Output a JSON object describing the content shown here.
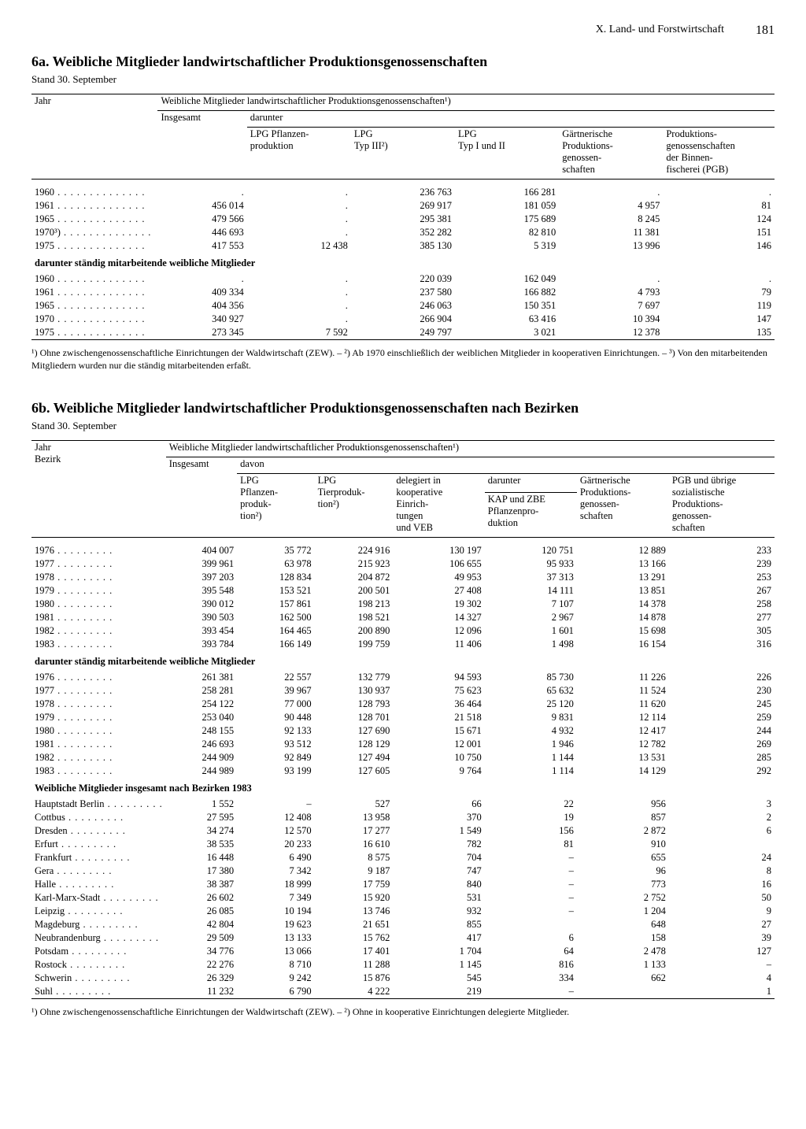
{
  "page": {
    "section": "X. Land- und Forstwirtschaft",
    "number": "181"
  },
  "table6a": {
    "title": "6a. Weibliche Mitglieder landwirtschaftlicher Produktionsgenossenschaften",
    "stand": "Stand 30. September",
    "h_jahr": "Jahr",
    "h_main": "Weibliche Mitglieder landwirtschaftlicher Produktionsgenossenschaften¹)",
    "h_insgesamt": "Insgesamt",
    "h_darunter": "darunter",
    "cols": {
      "c1": "LPG Pflanzen-\nproduktion",
      "c2": "LPG\nTyp III²)",
      "c3": "LPG\nTyp I und II",
      "c4": "Gärtnerische\nProduktions-\ngenossen-\nschaften",
      "c5": "Produktions-\ngenossenschaften\nder Binnen-\nfischerei (PGB)"
    },
    "rows1": [
      {
        "y": "1960",
        "ins": ".",
        "c1": ".",
        "c2": "236 763",
        "c3": "166 281",
        "c4": ".",
        "c5": "."
      },
      {
        "y": "1961",
        "ins": "456 014",
        "c1": ".",
        "c2": "269 917",
        "c3": "181 059",
        "c4": "4 957",
        "c5": "81"
      },
      {
        "y": "1965",
        "ins": "479 566",
        "c1": ".",
        "c2": "295 381",
        "c3": "175 689",
        "c4": "8 245",
        "c5": "124"
      },
      {
        "y": "1970³)",
        "ins": "446 693",
        "c1": ".",
        "c2": "352 282",
        "c3": "82 810",
        "c4": "11 381",
        "c5": "151"
      },
      {
        "y": "1975",
        "ins": "417 553",
        "c1": "12 438",
        "c2": "385 130",
        "c3": "5 319",
        "c4": "13 996",
        "c5": "146"
      }
    ],
    "sub1": "darunter ständig mitarbeitende weibliche Mitglieder",
    "rows2": [
      {
        "y": "1960",
        "ins": ".",
        "c1": ".",
        "c2": "220 039",
        "c3": "162 049",
        "c4": ".",
        "c5": "."
      },
      {
        "y": "1961",
        "ins": "409 334",
        "c1": ".",
        "c2": "237 580",
        "c3": "166 882",
        "c4": "4 793",
        "c5": "79"
      },
      {
        "y": "1965",
        "ins": "404 356",
        "c1": ".",
        "c2": "246 063",
        "c3": "150 351",
        "c4": "7 697",
        "c5": "119"
      },
      {
        "y": "1970",
        "ins": "340 927",
        "c1": ".",
        "c2": "266 904",
        "c3": "63 416",
        "c4": "10 394",
        "c5": "147"
      },
      {
        "y": "1975",
        "ins": "273 345",
        "c1": "7 592",
        "c2": "249 797",
        "c3": "3 021",
        "c4": "12 378",
        "c5": "135"
      }
    ],
    "footnote": "¹) Ohne zwischengenossenschaftliche Einrichtungen der Waldwirtschaft (ZEW). – ²) Ab 1970 einschließlich der weiblichen Mitglieder in kooperativen Einrichtungen. – ³) Von den mitarbeitenden Mitgliedern wurden nur die ständig mitarbeitenden erfaßt."
  },
  "table6b": {
    "title": "6b. Weibliche Mitglieder landwirtschaftlicher Produktionsgenossenschaften nach Bezirken",
    "stand": "Stand 30. September",
    "h_jahr": "Jahr\nBezirk",
    "h_main": "Weibliche Mitglieder landwirtschaftlicher Produktionsgenossenschaften¹)",
    "h_insgesamt": "Insgesamt",
    "h_davon": "davon",
    "h_darunter": "darunter",
    "cols": {
      "c1": "LPG\nPflanzen-\nproduk-\ntion²)",
      "c2": "LPG\nTierproduk-\ntion²)",
      "c3": "delegiert in\nkooperative\nEinrich-\ntungen\nund VEB",
      "c4": "KAP und ZBE\nPflanzenpro-\nduktion",
      "c5": "Gärtnerische\nProduktions-\ngenossen-\nschaften",
      "c6": "PGB und übrige\nsozialistische\nProduktions-\ngenossen-\nschaften"
    },
    "rows1": [
      {
        "y": "1976",
        "ins": "404 007",
        "c1": "35 772",
        "c2": "224 916",
        "c3": "130 197",
        "c4": "120 751",
        "c5": "12 889",
        "c6": "233"
      },
      {
        "y": "1977",
        "ins": "399 961",
        "c1": "63 978",
        "c2": "215 923",
        "c3": "106 655",
        "c4": "95 933",
        "c5": "13 166",
        "c6": "239"
      },
      {
        "y": "1978",
        "ins": "397 203",
        "c1": "128 834",
        "c2": "204 872",
        "c3": "49 953",
        "c4": "37 313",
        "c5": "13 291",
        "c6": "253"
      },
      {
        "y": "1979",
        "ins": "395 548",
        "c1": "153 521",
        "c2": "200 501",
        "c3": "27 408",
        "c4": "14 111",
        "c5": "13 851",
        "c6": "267"
      },
      {
        "y": "1980",
        "ins": "390 012",
        "c1": "157 861",
        "c2": "198 213",
        "c3": "19 302",
        "c4": "7 107",
        "c5": "14 378",
        "c6": "258"
      },
      {
        "y": "1981",
        "ins": "390 503",
        "c1": "162 500",
        "c2": "198 521",
        "c3": "14 327",
        "c4": "2 967",
        "c5": "14 878",
        "c6": "277"
      },
      {
        "y": "1982",
        "ins": "393 454",
        "c1": "164 465",
        "c2": "200 890",
        "c3": "12 096",
        "c4": "1 601",
        "c5": "15 698",
        "c6": "305"
      },
      {
        "y": "1983",
        "ins": "393 784",
        "c1": "166 149",
        "c2": "199 759",
        "c3": "11 406",
        "c4": "1 498",
        "c5": "16 154",
        "c6": "316"
      }
    ],
    "sub1": "darunter ständig mitarbeitende weibliche Mitglieder",
    "rows2": [
      {
        "y": "1976",
        "ins": "261 381",
        "c1": "22 557",
        "c2": "132 779",
        "c3": "94 593",
        "c4": "85 730",
        "c5": "11 226",
        "c6": "226"
      },
      {
        "y": "1977",
        "ins": "258 281",
        "c1": "39 967",
        "c2": "130 937",
        "c3": "75 623",
        "c4": "65 632",
        "c5": "11 524",
        "c6": "230"
      },
      {
        "y": "1978",
        "ins": "254 122",
        "c1": "77 000",
        "c2": "128 793",
        "c3": "36 464",
        "c4": "25 120",
        "c5": "11 620",
        "c6": "245"
      },
      {
        "y": "1979",
        "ins": "253 040",
        "c1": "90 448",
        "c2": "128 701",
        "c3": "21 518",
        "c4": "9 831",
        "c5": "12 114",
        "c6": "259"
      },
      {
        "y": "1980",
        "ins": "248 155",
        "c1": "92 133",
        "c2": "127 690",
        "c3": "15 671",
        "c4": "4 932",
        "c5": "12 417",
        "c6": "244"
      },
      {
        "y": "1981",
        "ins": "246 693",
        "c1": "93 512",
        "c2": "128 129",
        "c3": "12 001",
        "c4": "1 946",
        "c5": "12 782",
        "c6": "269"
      },
      {
        "y": "1982",
        "ins": "244 909",
        "c1": "92 849",
        "c2": "127 494",
        "c3": "10 750",
        "c4": "1 144",
        "c5": "13 531",
        "c6": "285"
      },
      {
        "y": "1983",
        "ins": "244 989",
        "c1": "93 199",
        "c2": "127 605",
        "c3": "9 764",
        "c4": "1 114",
        "c5": "14 129",
        "c6": "292"
      }
    ],
    "sub2": "Weibliche Mitglieder insgesamt nach Bezirken 1983",
    "rows3": [
      {
        "y": "Hauptstadt Berlin",
        "ins": "1 552",
        "c1": "–",
        "c2": "527",
        "c3": "66",
        "c4": "22",
        "c5": "956",
        "c6": "3"
      },
      {
        "y": "Cottbus",
        "ins": "27 595",
        "c1": "12 408",
        "c2": "13 958",
        "c3": "370",
        "c4": "19",
        "c5": "857",
        "c6": "2"
      },
      {
        "y": "Dresden",
        "ins": "34 274",
        "c1": "12 570",
        "c2": "17 277",
        "c3": "1 549",
        "c4": "156",
        "c5": "2 872",
        "c6": "6"
      },
      {
        "y": "Erfurt",
        "ins": "38 535",
        "c1": "20 233",
        "c2": "16 610",
        "c3": "782",
        "c4": "81",
        "c5": "910",
        "c6": ""
      },
      {
        "y": "Frankfurt",
        "ins": "16 448",
        "c1": "6 490",
        "c2": "8 575",
        "c3": "704",
        "c4": "–",
        "c5": "655",
        "c6": "24"
      },
      {
        "y": "Gera",
        "ins": "17 380",
        "c1": "7 342",
        "c2": "9 187",
        "c3": "747",
        "c4": "–",
        "c5": "96",
        "c6": "8"
      },
      {
        "y": "Halle",
        "ins": "38 387",
        "c1": "18 999",
        "c2": "17 759",
        "c3": "840",
        "c4": "–",
        "c5": "773",
        "c6": "16"
      },
      {
        "y": "Karl-Marx-Stadt",
        "ins": "26 602",
        "c1": "7 349",
        "c2": "15 920",
        "c3": "531",
        "c4": "–",
        "c5": "2 752",
        "c6": "50"
      },
      {
        "y": "Leipzig",
        "ins": "26 085",
        "c1": "10 194",
        "c2": "13 746",
        "c3": "932",
        "c4": "–",
        "c5": "1 204",
        "c6": "9"
      },
      {
        "y": "Magdeburg",
        "ins": "42 804",
        "c1": "19 623",
        "c2": "21 651",
        "c3": "855",
        "c4": "",
        "c5": "648",
        "c6": "27"
      },
      {
        "y": "Neubrandenburg",
        "ins": "29 509",
        "c1": "13 133",
        "c2": "15 762",
        "c3": "417",
        "c4": "6",
        "c5": "158",
        "c6": "39"
      },
      {
        "y": "Potsdam",
        "ins": "34 776",
        "c1": "13 066",
        "c2": "17 401",
        "c3": "1 704",
        "c4": "64",
        "c5": "2 478",
        "c6": "127"
      },
      {
        "y": "Rostock",
        "ins": "22 276",
        "c1": "8 710",
        "c2": "11 288",
        "c3": "1 145",
        "c4": "816",
        "c5": "1 133",
        "c6": "–"
      },
      {
        "y": "Schwerin",
        "ins": "26 329",
        "c1": "9 242",
        "c2": "15 876",
        "c3": "545",
        "c4": "334",
        "c5": "662",
        "c6": "4"
      },
      {
        "y": "Suhl",
        "ins": "11 232",
        "c1": "6 790",
        "c2": "4 222",
        "c3": "219",
        "c4": "–",
        "c5": "",
        "c6": "1"
      }
    ],
    "footnote": "¹) Ohne zwischengenossenschaftliche Einrichtungen der Waldwirtschaft (ZEW). – ²) Ohne in kooperative Einrichtungen delegierte Mitglieder."
  }
}
